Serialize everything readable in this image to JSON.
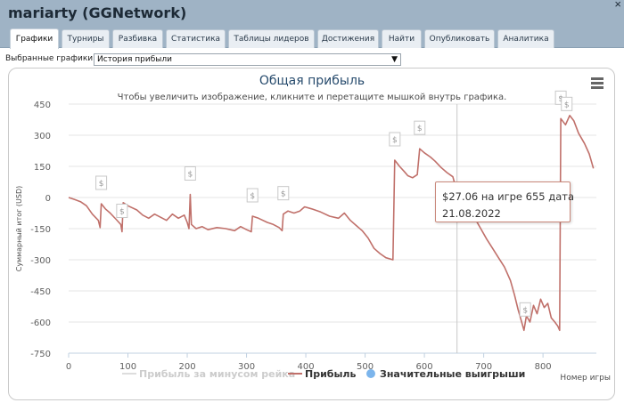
{
  "window": {
    "title": "mariarty (GGNetwork)",
    "close_glyph": "×"
  },
  "tabs": [
    {
      "label": "Графики",
      "active": true
    },
    {
      "label": "Турниры",
      "active": false
    },
    {
      "label": "Разбивка",
      "active": false
    },
    {
      "label": "Статистика",
      "active": false
    },
    {
      "label": "Таблицы лидеров",
      "active": false
    },
    {
      "label": "Достижения",
      "active": false
    },
    {
      "label": "Найти",
      "active": false
    },
    {
      "label": "Опубликовать",
      "active": false
    },
    {
      "label": "Аналитика",
      "active": false
    }
  ],
  "selector": {
    "label": "Выбранные графики:",
    "value": "История прибыли"
  },
  "chart_data": {
    "type": "line",
    "title": "Общая прибыль",
    "subtitle": "Чтобы увеличить изображение, кликните и перетащите мышкой внутрь графика.",
    "xlabel": "Номер игры",
    "ylabel": "Суммарный итог (USD)",
    "xlim": [
      0,
      890
    ],
    "ylim": [
      -750,
      450
    ],
    "x_ticks": [
      0,
      100,
      200,
      300,
      400,
      500,
      600,
      700,
      800
    ],
    "y_ticks": [
      450,
      300,
      150,
      0,
      -150,
      -300,
      -450,
      -600,
      -750
    ],
    "grid": "horizontal",
    "legend_position": "bottom",
    "legend": [
      {
        "name": "Прибыль за минусом рейка",
        "color": "#dddddd",
        "marker": "line"
      },
      {
        "name": "Прибыль",
        "color": "#c0706a",
        "marker": "line"
      },
      {
        "name": "Значительные выигрыши",
        "color": "#7cb5ec",
        "marker": "circle"
      }
    ],
    "series": [
      {
        "name": "Прибыль",
        "color": "#c0706a",
        "points": [
          [
            0,
            0
          ],
          [
            10,
            -10
          ],
          [
            20,
            -20
          ],
          [
            30,
            -40
          ],
          [
            40,
            -80
          ],
          [
            50,
            -110
          ],
          [
            53,
            -145
          ],
          [
            55,
            -30
          ],
          [
            62,
            -55
          ],
          [
            70,
            -75
          ],
          [
            80,
            -105
          ],
          [
            88,
            -130
          ],
          [
            90,
            -165
          ],
          [
            92,
            -25
          ],
          [
            100,
            -40
          ],
          [
            115,
            -60
          ],
          [
            125,
            -85
          ],
          [
            135,
            -100
          ],
          [
            145,
            -80
          ],
          [
            155,
            -95
          ],
          [
            165,
            -110
          ],
          [
            175,
            -80
          ],
          [
            185,
            -100
          ],
          [
            195,
            -85
          ],
          [
            200,
            -120
          ],
          [
            203,
            -150
          ],
          [
            205,
            15
          ],
          [
            207,
            -130
          ],
          [
            215,
            -150
          ],
          [
            225,
            -140
          ],
          [
            235,
            -155
          ],
          [
            250,
            -145
          ],
          [
            265,
            -150
          ],
          [
            280,
            -160
          ],
          [
            290,
            -140
          ],
          [
            300,
            -155
          ],
          [
            308,
            -165
          ],
          [
            310,
            -90
          ],
          [
            320,
            -100
          ],
          [
            335,
            -120
          ],
          [
            345,
            -130
          ],
          [
            355,
            -145
          ],
          [
            360,
            -160
          ],
          [
            362,
            -80
          ],
          [
            370,
            -65
          ],
          [
            380,
            -75
          ],
          [
            390,
            -65
          ],
          [
            398,
            -45
          ],
          [
            410,
            -55
          ],
          [
            425,
            -70
          ],
          [
            440,
            -90
          ],
          [
            455,
            -100
          ],
          [
            465,
            -75
          ],
          [
            475,
            -110
          ],
          [
            485,
            -135
          ],
          [
            495,
            -160
          ],
          [
            505,
            -195
          ],
          [
            515,
            -245
          ],
          [
            525,
            -270
          ],
          [
            535,
            -290
          ],
          [
            547,
            -300
          ],
          [
            550,
            180
          ],
          [
            558,
            150
          ],
          [
            566,
            125
          ],
          [
            572,
            105
          ],
          [
            580,
            95
          ],
          [
            588,
            110
          ],
          [
            592,
            235
          ],
          [
            600,
            215
          ],
          [
            610,
            195
          ],
          [
            618,
            175
          ],
          [
            628,
            145
          ],
          [
            638,
            120
          ],
          [
            648,
            100
          ],
          [
            655,
            27.06
          ],
          [
            665,
            5
          ],
          [
            675,
            -50
          ],
          [
            685,
            -100
          ],
          [
            695,
            -150
          ],
          [
            705,
            -200
          ],
          [
            715,
            -245
          ],
          [
            725,
            -290
          ],
          [
            735,
            -335
          ],
          [
            745,
            -400
          ],
          [
            752,
            -470
          ],
          [
            758,
            -540
          ],
          [
            764,
            -600
          ],
          [
            768,
            -640
          ],
          [
            772,
            -570
          ],
          [
            778,
            -600
          ],
          [
            784,
            -520
          ],
          [
            790,
            -560
          ],
          [
            796,
            -490
          ],
          [
            802,
            -530
          ],
          [
            808,
            -510
          ],
          [
            814,
            -580
          ],
          [
            820,
            -600
          ],
          [
            825,
            -620
          ],
          [
            828,
            -640
          ],
          [
            830,
            380
          ],
          [
            838,
            350
          ],
          [
            845,
            395
          ],
          [
            852,
            370
          ],
          [
            860,
            310
          ],
          [
            870,
            260
          ],
          [
            878,
            210
          ],
          [
            885,
            140
          ]
        ]
      }
    ],
    "big_wins": [
      55,
      90,
      205,
      310,
      362,
      550,
      592,
      770,
      830,
      840
    ],
    "hover_x": 655,
    "tooltip": {
      "line1": "$27.06 на игре 655 дата",
      "line2": "21.08.2022"
    }
  }
}
